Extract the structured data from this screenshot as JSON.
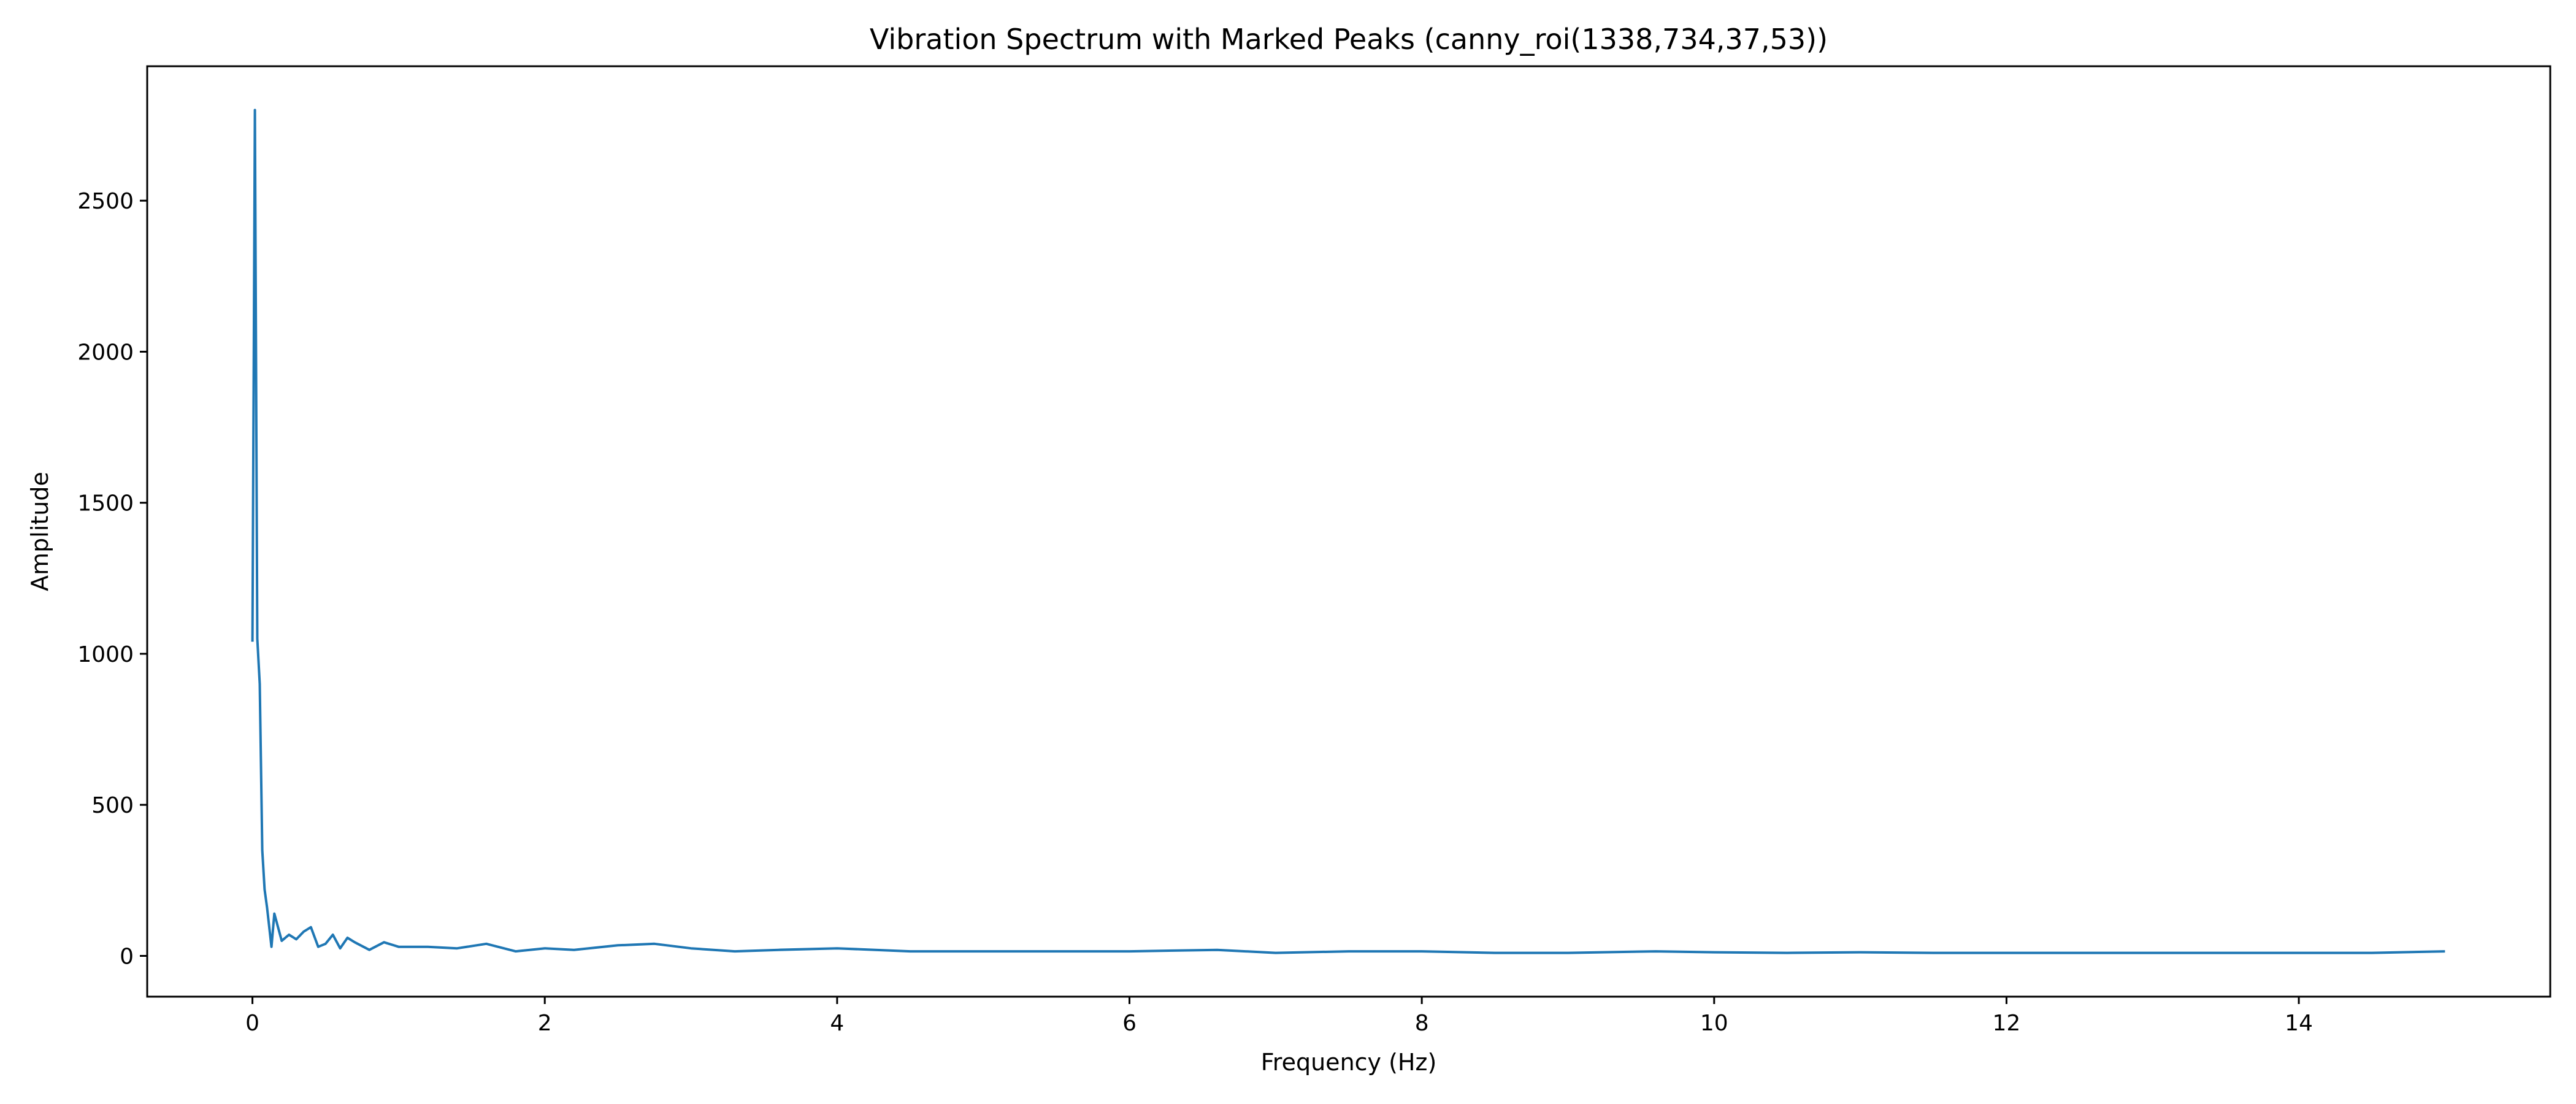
{
  "chart_data": {
    "type": "line",
    "title": "Vibration Spectrum with Marked Peaks (canny_roi(1338,734,37,53))",
    "xlabel": "Frequency (Hz)",
    "ylabel": "Amplitude",
    "xlim": [
      -0.72,
      15.72
    ],
    "ylim": [
      -135,
      2945
    ],
    "xticks": [
      0,
      2,
      4,
      6,
      8,
      10,
      12,
      14
    ],
    "xtick_labels": [
      "0",
      "2",
      "4",
      "6",
      "8",
      "10",
      "12",
      "14"
    ],
    "yticks": [
      0,
      500,
      1000,
      1500,
      2000,
      2500
    ],
    "ytick_labels": [
      "0",
      "500",
      "1000",
      "1500",
      "2000",
      "2500"
    ],
    "grid": false,
    "legend": "none",
    "line_color": "#1f77b4",
    "series": [
      {
        "x": [
          0.0,
          0.017,
          0.033,
          0.05,
          0.067,
          0.083,
          0.1,
          0.13,
          0.15,
          0.2,
          0.25,
          0.3,
          0.35,
          0.4,
          0.45,
          0.5,
          0.55,
          0.6,
          0.65,
          0.7,
          0.8,
          0.9,
          1.0,
          1.2,
          1.4,
          1.6,
          1.8,
          2.0,
          2.2,
          2.5,
          2.75,
          3.0,
          3.3,
          3.6,
          4.0,
          4.5,
          5.0,
          5.5,
          6.0,
          6.6,
          7.0,
          7.5,
          8.0,
          8.5,
          9.0,
          9.6,
          10.0,
          10.5,
          11.0,
          11.5,
          12.0,
          12.5,
          13.0,
          13.5,
          14.0,
          14.5,
          15.0
        ],
        "y": [
          1040,
          2800,
          1050,
          900,
          350,
          220,
          160,
          30,
          140,
          50,
          70,
          55,
          80,
          95,
          30,
          40,
          70,
          25,
          60,
          45,
          20,
          45,
          30,
          30,
          25,
          40,
          15,
          25,
          20,
          35,
          40,
          25,
          15,
          20,
          25,
          15,
          15,
          15,
          15,
          20,
          10,
          15,
          15,
          10,
          10,
          15,
          12,
          10,
          12,
          10,
          10,
          10,
          10,
          10,
          10,
          10,
          15
        ]
      }
    ]
  }
}
